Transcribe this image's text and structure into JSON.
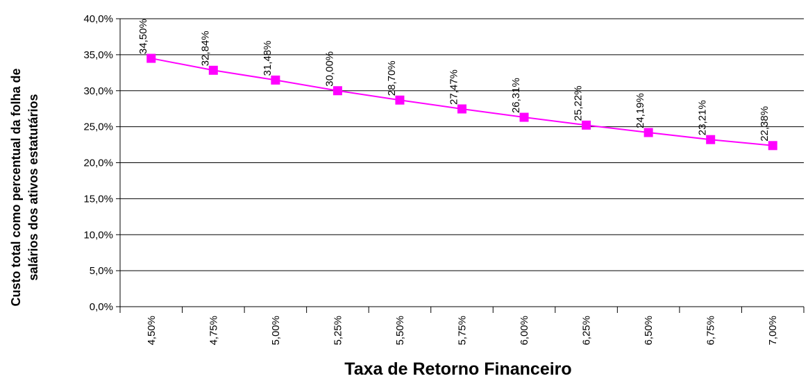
{
  "chart_data": {
    "type": "line",
    "x_label": "Taxa de Retorno Financeiro",
    "y_label": [
      "Custo total como percentual da folha de",
      "salários dos ativos estatutários"
    ],
    "categories": [
      "4,50%",
      "4,75%",
      "5,00%",
      "5,25%",
      "5,50%",
      "5,75%",
      "6,00%",
      "6,25%",
      "6,50%",
      "6,75%",
      "7,00%"
    ],
    "series": [
      {
        "color": "#ff00ff",
        "values": [
          34.5,
          32.84,
          31.48,
          30.0,
          28.7,
          27.47,
          26.31,
          25.22,
          24.19,
          23.21,
          22.38
        ],
        "value_labels": [
          "34,50%",
          "32,84%",
          "31,48%",
          "30,00%",
          "28,70%",
          "27,47%",
          "26,31%",
          "25,22%",
          "24,19%",
          "23,21%",
          "22,38%"
        ]
      }
    ],
    "ylim": [
      0,
      40
    ],
    "yticks": [
      {
        "value": 0,
        "label": "0,0%"
      },
      {
        "value": 5,
        "label": "5,0%"
      },
      {
        "value": 10,
        "label": "10,0%"
      },
      {
        "value": 15,
        "label": "15,0%"
      },
      {
        "value": 20,
        "label": "20,0%"
      },
      {
        "value": 25,
        "label": "25,0%"
      },
      {
        "value": 30,
        "label": "30,0%"
      },
      {
        "value": 35,
        "label": "35,0%"
      },
      {
        "value": 40,
        "label": "40,0%"
      }
    ],
    "grid": true
  }
}
